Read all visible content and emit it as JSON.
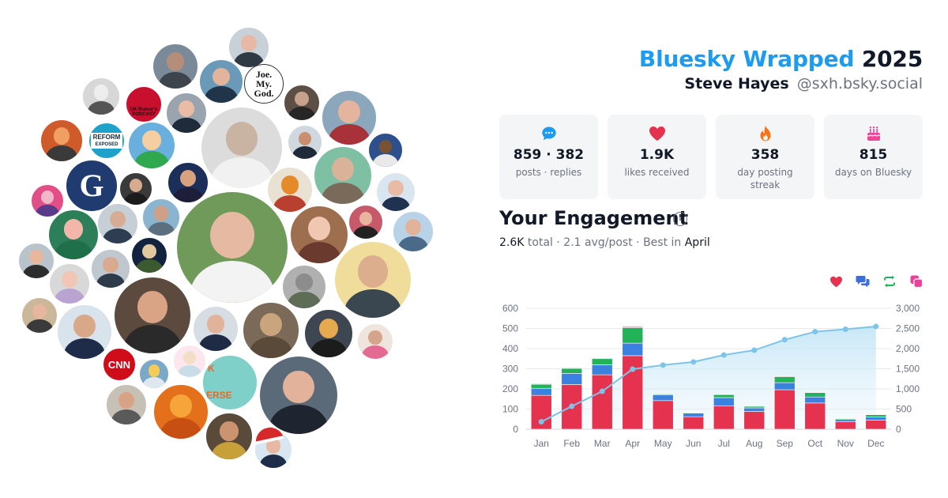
{
  "header": {
    "brand": "Bluesky Wrapped",
    "year": "2025",
    "user_name": "Steve Hayes",
    "user_handle": "@sxh.bsky.social"
  },
  "stats": [
    {
      "icon": "speech-bubble-icon",
      "value": "859 · 382",
      "label": "posts · replies",
      "color": "#1d9bf0"
    },
    {
      "icon": "heart-icon",
      "value": "1.9K",
      "label": "likes received",
      "color": "#e5334f"
    },
    {
      "icon": "flame-icon",
      "value": "358",
      "label": "day posting streak",
      "color": "#f97316"
    },
    {
      "icon": "birthday-cake-icon",
      "value": "815",
      "label": "days on Bluesky",
      "color": "#ec4899"
    }
  ],
  "engagement": {
    "title": "Your Engagement",
    "total_value": "2.6K",
    "total_label": "total",
    "avg": "2.1 avg/post",
    "best_prefix": "Best in",
    "best_month": "April",
    "legend": [
      {
        "icon": "heart-icon",
        "color": "#e5334f"
      },
      {
        "icon": "reply-icon",
        "color": "#3b6fd8"
      },
      {
        "icon": "repost-icon",
        "color": "#1fb35a"
      },
      {
        "icon": "quote-icon",
        "color": "#e9409a"
      }
    ]
  },
  "avatars": {
    "text_avatars": [
      "Joe.",
      "My.",
      "God.",
      "REFORM",
      "EXPOSED",
      "CNN",
      "G",
      "UK Rumor's PODCAST",
      "K",
      "ERSE"
    ]
  },
  "chart_data": {
    "type": "bar",
    "categories": [
      "Jan",
      "Feb",
      "Mar",
      "Apr",
      "May",
      "Jun",
      "Jul",
      "Aug",
      "Sep",
      "Oct",
      "Nov",
      "Dec"
    ],
    "series": [
      {
        "values": [
          168,
          222,
          270,
          365,
          142,
          62,
          115,
          88,
          196,
          130,
          38,
          45
        ],
        "color": "#e5334f"
      },
      {
        "values": [
          35,
          55,
          50,
          62,
          28,
          18,
          42,
          18,
          35,
          30,
          10,
          15
        ],
        "color": "#3b82e0"
      },
      {
        "values": [
          20,
          25,
          30,
          77,
          5,
          3,
          15,
          8,
          30,
          22,
          5,
          12
        ],
        "color": "#22b35a"
      },
      {
        "values": [
          3,
          3,
          3,
          5,
          1,
          1,
          2,
          1,
          3,
          2,
          1,
          1
        ],
        "color": "#e9409a"
      }
    ],
    "cumulative": {
      "values": [
        185,
        570,
        940,
        1490,
        1590,
        1670,
        1840,
        1960,
        2220,
        2420,
        2480,
        2550
      ],
      "color": "#7cc4ea"
    },
    "left_axis": {
      "ticks": [
        "0",
        "100",
        "200",
        "300",
        "400",
        "500",
        "600"
      ],
      "ylim": [
        0,
        600
      ]
    },
    "right_axis": {
      "ticks": [
        "0",
        "500",
        "1,000",
        "1,500",
        "2,000",
        "2,500",
        "3,000"
      ],
      "ylim": [
        0,
        3000
      ]
    },
    "grid": true
  }
}
